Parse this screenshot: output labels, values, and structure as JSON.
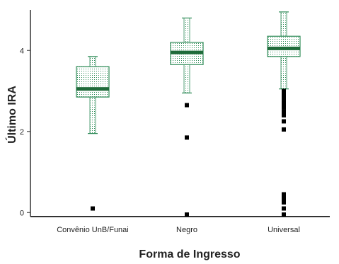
{
  "chart_data": {
    "type": "box",
    "title": "",
    "xlabel": "Forma de Ingresso",
    "ylabel": "Último IRA",
    "ylim": [
      -0.1,
      5.0
    ],
    "yticks": [
      0,
      2,
      4
    ],
    "grid": false,
    "legend": "none",
    "categories": [
      "Convênio UnB/Funai",
      "Negro",
      "Universal"
    ],
    "boxes": [
      {
        "category": "Convênio UnB/Funai",
        "whisker_low": 1.95,
        "q1": 2.85,
        "median": 3.05,
        "q3": 3.6,
        "whisker_high": 3.85,
        "outliers": [
          0.1
        ]
      },
      {
        "category": "Negro",
        "whisker_low": 2.95,
        "q1": 3.65,
        "median": 3.95,
        "q3": 4.2,
        "whisker_high": 4.8,
        "outliers": [
          2.65,
          1.85,
          -0.05
        ]
      },
      {
        "category": "Universal",
        "whisker_low": 3.05,
        "q1": 3.85,
        "median": 4.05,
        "q3": 4.35,
        "whisker_high": 4.95,
        "outliers": [
          3.0,
          2.9,
          2.8,
          2.7,
          2.6,
          2.5,
          2.4,
          2.25,
          2.05,
          0.45,
          0.35,
          0.25,
          0.1,
          -0.05
        ]
      }
    ],
    "colors": {
      "box": "#2e8b57",
      "median": "#1f6b3a",
      "fill_dot": "#2e8b57",
      "outlier": "#000000",
      "axis": "#333333"
    }
  }
}
